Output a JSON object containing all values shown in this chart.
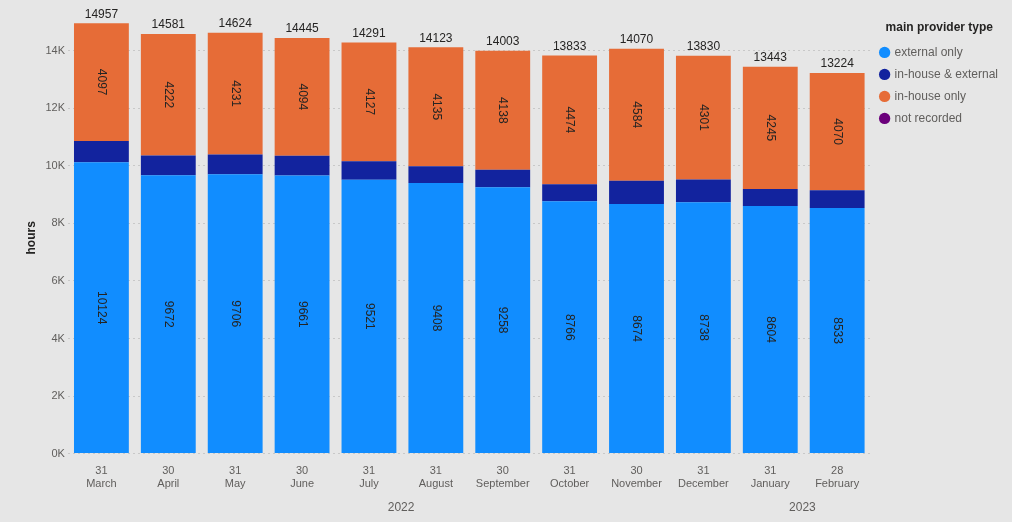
{
  "chart_data": {
    "type": "bar",
    "stacked": true,
    "ylabel": "hours",
    "legend_title": "main provider type",
    "legend": "top right",
    "grid": "y",
    "categories": [
      "31\nMarch",
      "30\nApril",
      "31\nMay",
      "30\nJune",
      "31\nJuly",
      "31\nAugust",
      "30\nSeptember",
      "31\nOctober",
      "30\nNovember",
      "31\nDecember",
      "31\nJanuary",
      "28\nFebruary"
    ],
    "ylim": [
      0,
      15000
    ],
    "yticks": [
      {
        "value": 0,
        "label": "0K"
      },
      {
        "value": 2000,
        "label": "2K"
      },
      {
        "value": 4000,
        "label": "4K"
      },
      {
        "value": 6000,
        "label": "6K"
      },
      {
        "value": 8000,
        "label": "8K"
      },
      {
        "value": 10000,
        "label": "10K"
      },
      {
        "value": 12000,
        "label": "12K"
      },
      {
        "value": 14000,
        "label": "14K"
      }
    ],
    "series": [
      {
        "name": "external only",
        "color": "#118dff",
        "values": [
          10124,
          9672,
          9706,
          9661,
          9521,
          9408,
          9258,
          8766,
          8674,
          8738,
          8604,
          8533
        ],
        "value_labels": [
          "10124",
          "9672",
          "9706",
          "9661",
          "9521",
          "9408",
          "9258",
          "8766",
          "8674",
          "8738",
          "8604",
          "8533"
        ]
      },
      {
        "name": "in-house & external",
        "color": "#12239e",
        "values": [
          736,
          687,
          687,
          690,
          643,
          580,
          607,
          593,
          812,
          791,
          594,
          621
        ]
      },
      {
        "name": "in-house only",
        "color": "#e66c37",
        "values": [
          4097,
          4222,
          4231,
          4094,
          4127,
          4135,
          4138,
          4474,
          4584,
          4301,
          4245,
          4070
        ],
        "value_labels": [
          "4097",
          "4222",
          "4231",
          "4094",
          "4127",
          "4135",
          "4138",
          "4474",
          "4584",
          "4301",
          "4245",
          "4070"
        ]
      },
      {
        "name": "not recorded",
        "color": "#6b007b",
        "values": [
          null,
          null,
          null,
          null,
          null,
          null,
          null,
          null,
          null,
          null,
          null,
          null
        ]
      }
    ],
    "totals": [
      "14957",
      "14581",
      "14624",
      "14445",
      "14291",
      "14123",
      "14003",
      "13833",
      "14070",
      "13830",
      "13443",
      "13224"
    ],
    "annotations": [
      "2022",
      "2023"
    ]
  }
}
